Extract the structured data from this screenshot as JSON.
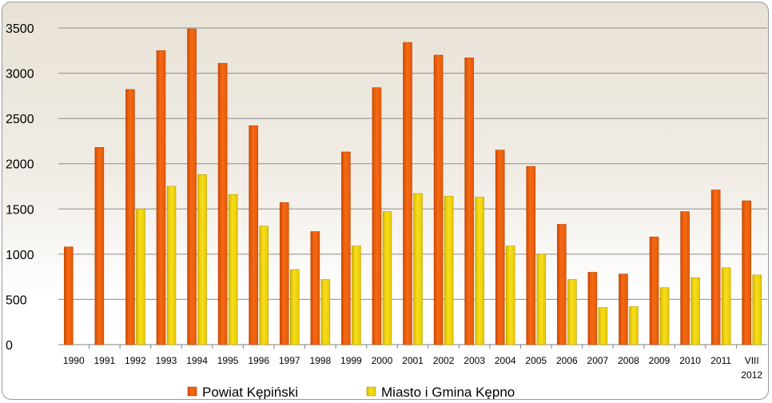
{
  "chart_data": {
    "type": "bar",
    "title": "",
    "xlabel": "",
    "ylabel": "",
    "categories": [
      "1990",
      "1991",
      "1992",
      "1993",
      "1994",
      "1995",
      "1996",
      "1997",
      "1998",
      "1999",
      "2000",
      "2001",
      "2002",
      "2003",
      "2004",
      "2005",
      "2006",
      "2007",
      "2008",
      "2009",
      "2010",
      "2011",
      "VIII 2012"
    ],
    "category_lines": [
      [
        "1990"
      ],
      [
        "1991"
      ],
      [
        "1992"
      ],
      [
        "1993"
      ],
      [
        "1994"
      ],
      [
        "1995"
      ],
      [
        "1996"
      ],
      [
        "1997"
      ],
      [
        "1998"
      ],
      [
        "1999"
      ],
      [
        "2000"
      ],
      [
        "2001"
      ],
      [
        "2002"
      ],
      [
        "2003"
      ],
      [
        "2004"
      ],
      [
        "2005"
      ],
      [
        "2006"
      ],
      [
        "2007"
      ],
      [
        "2008"
      ],
      [
        "2009"
      ],
      [
        "2010"
      ],
      [
        "2011"
      ],
      [
        "VIII",
        "2012"
      ]
    ],
    "series": [
      {
        "name": "Powiat Kępiński",
        "color": "#f06010",
        "values": [
          1080,
          2180,
          2820,
          3250,
          3490,
          3110,
          2420,
          1570,
          1250,
          2130,
          2840,
          3340,
          3200,
          3170,
          2150,
          1970,
          1330,
          800,
          780,
          1190,
          1470,
          1710,
          1590
        ]
      },
      {
        "name": "Miasto i Gmina Kępno",
        "color": "#f3d60c",
        "values": [
          null,
          null,
          1500,
          1750,
          1880,
          1660,
          1310,
          830,
          720,
          1090,
          1470,
          1670,
          1640,
          1630,
          1090,
          1000,
          720,
          410,
          420,
          630,
          740,
          850,
          770
        ]
      }
    ],
    "ylim": [
      0,
      3500
    ],
    "yticks": [
      0,
      500,
      1000,
      1500,
      2000,
      2500,
      3000,
      3500
    ],
    "grid": true,
    "legend_position": "bottom"
  }
}
